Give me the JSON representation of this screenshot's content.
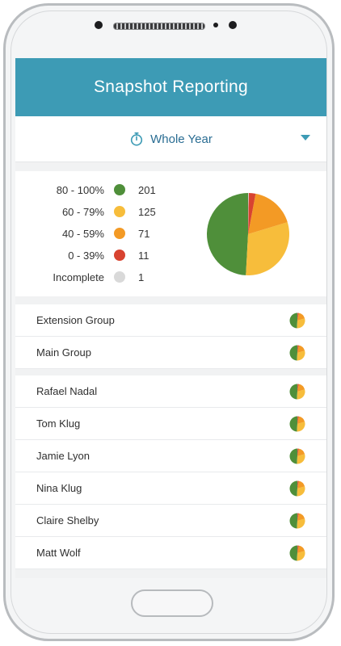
{
  "header": {
    "title": "Snapshot Reporting"
  },
  "period": {
    "label": "Whole Year"
  },
  "summary": {
    "buckets": [
      {
        "range": "80 - 100%",
        "count": "201",
        "color": "#4f8f3a"
      },
      {
        "range": "60 - 79%",
        "count": "125",
        "color": "#f7bd3b"
      },
      {
        "range": "40 - 59%",
        "count": "71",
        "color": "#f39a25"
      },
      {
        "range": "0 - 39%",
        "count": "11",
        "color": "#d84330"
      },
      {
        "range": "Incomplete",
        "count": "1",
        "color": "#d9d9d9"
      }
    ]
  },
  "groups": [
    {
      "name": "Extension Group"
    },
    {
      "name": "Main Group"
    }
  ],
  "people": [
    {
      "name": "Rafael Nadal"
    },
    {
      "name": "Tom Klug"
    },
    {
      "name": "Jamie Lyon"
    },
    {
      "name": "Nina Klug"
    },
    {
      "name": "Claire Shelby"
    },
    {
      "name": "Matt Wolf"
    }
  ],
  "chart_data": {
    "type": "pie",
    "categories": [
      "80 - 100%",
      "60 - 79%",
      "40 - 59%",
      "0 - 39%",
      "Incomplete"
    ],
    "values": [
      201,
      125,
      71,
      11,
      1
    ]
  }
}
